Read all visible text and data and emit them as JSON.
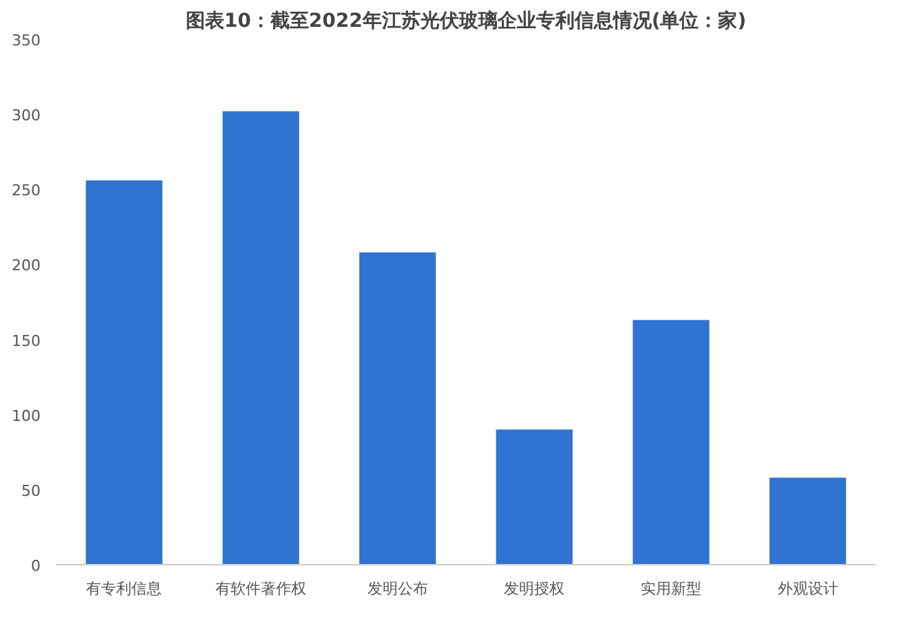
{
  "chart_data": {
    "type": "bar",
    "title": "图表10：截至2022年江苏光伏玻璃企业专利信息情况(单位：家)",
    "categories": [
      "有专利信息",
      "有软件著作权",
      "发明公布",
      "发明授权",
      "实用新型",
      "外观设计"
    ],
    "values": [
      256,
      302,
      208,
      90,
      163,
      58
    ],
    "color": "#2f74d0",
    "ylim": [
      0,
      350
    ],
    "yticks": [
      0,
      50,
      100,
      150,
      200,
      250,
      300,
      350
    ],
    "grid": false
  }
}
